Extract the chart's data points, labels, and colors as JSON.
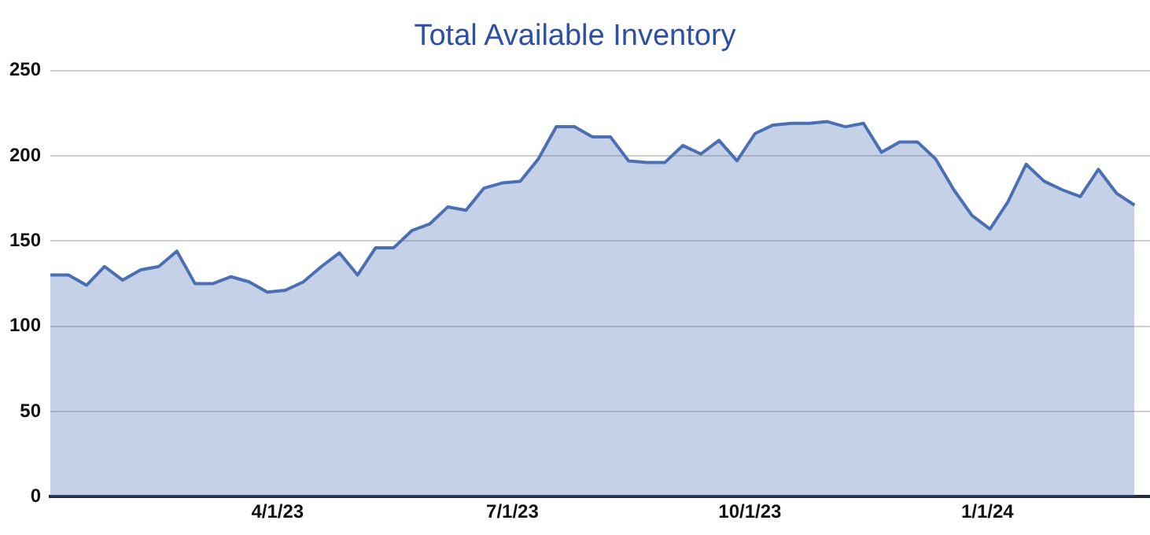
{
  "chart_data": {
    "type": "area",
    "title": "Total Available Inventory",
    "x": [
      "2023-01-03",
      "2023-01-10",
      "2023-01-17",
      "2023-01-24",
      "2023-01-31",
      "2023-02-07",
      "2023-02-14",
      "2023-02-21",
      "2023-02-28",
      "2023-03-07",
      "2023-03-14",
      "2023-03-21",
      "2023-03-28",
      "2023-04-04",
      "2023-04-11",
      "2023-04-18",
      "2023-04-25",
      "2023-05-02",
      "2023-05-09",
      "2023-05-16",
      "2023-05-23",
      "2023-05-30",
      "2023-06-06",
      "2023-06-13",
      "2023-06-20",
      "2023-06-27",
      "2023-07-04",
      "2023-07-11",
      "2023-07-18",
      "2023-07-25",
      "2023-08-01",
      "2023-08-08",
      "2023-08-15",
      "2023-08-22",
      "2023-08-29",
      "2023-09-05",
      "2023-09-12",
      "2023-09-19",
      "2023-09-26",
      "2023-10-03",
      "2023-10-10",
      "2023-10-17",
      "2023-10-24",
      "2023-10-31",
      "2023-11-07",
      "2023-11-14",
      "2023-11-21",
      "2023-11-28",
      "2023-12-05",
      "2023-12-12",
      "2023-12-19",
      "2023-12-26",
      "2024-01-02",
      "2024-01-09",
      "2024-01-16",
      "2024-01-23",
      "2024-01-30",
      "2024-02-06",
      "2024-02-13",
      "2024-02-20",
      "2024-02-27"
    ],
    "series": [
      {
        "color": "#4a6fb5",
        "values": [
          130,
          130,
          124,
          135,
          127,
          133,
          135,
          144,
          125,
          125,
          129,
          126,
          120,
          121,
          126,
          135,
          143,
          130,
          146,
          146,
          156,
          160,
          170,
          168,
          181,
          184,
          185,
          198,
          217,
          217,
          211,
          211,
          197,
          196,
          196,
          206,
          201,
          209,
          197,
          213,
          218,
          219,
          219,
          220,
          217,
          219,
          202,
          208,
          208,
          198,
          180,
          165,
          157,
          173,
          195,
          185,
          180,
          176,
          192,
          178,
          171
        ]
      }
    ],
    "xlim": [
      "2023-01-03",
      "2024-03-04"
    ],
    "xticks": [
      {
        "value": "2023-04-01",
        "label": "4/1/23"
      },
      {
        "value": "2023-07-01",
        "label": "7/1/23"
      },
      {
        "value": "2023-10-01",
        "label": "10/1/23"
      },
      {
        "value": "2024-01-01",
        "label": "1/1/24"
      }
    ],
    "ylim": [
      0,
      250
    ],
    "yticks": [
      0,
      50,
      100,
      150,
      200,
      250
    ],
    "grid": "y",
    "legend": false
  }
}
